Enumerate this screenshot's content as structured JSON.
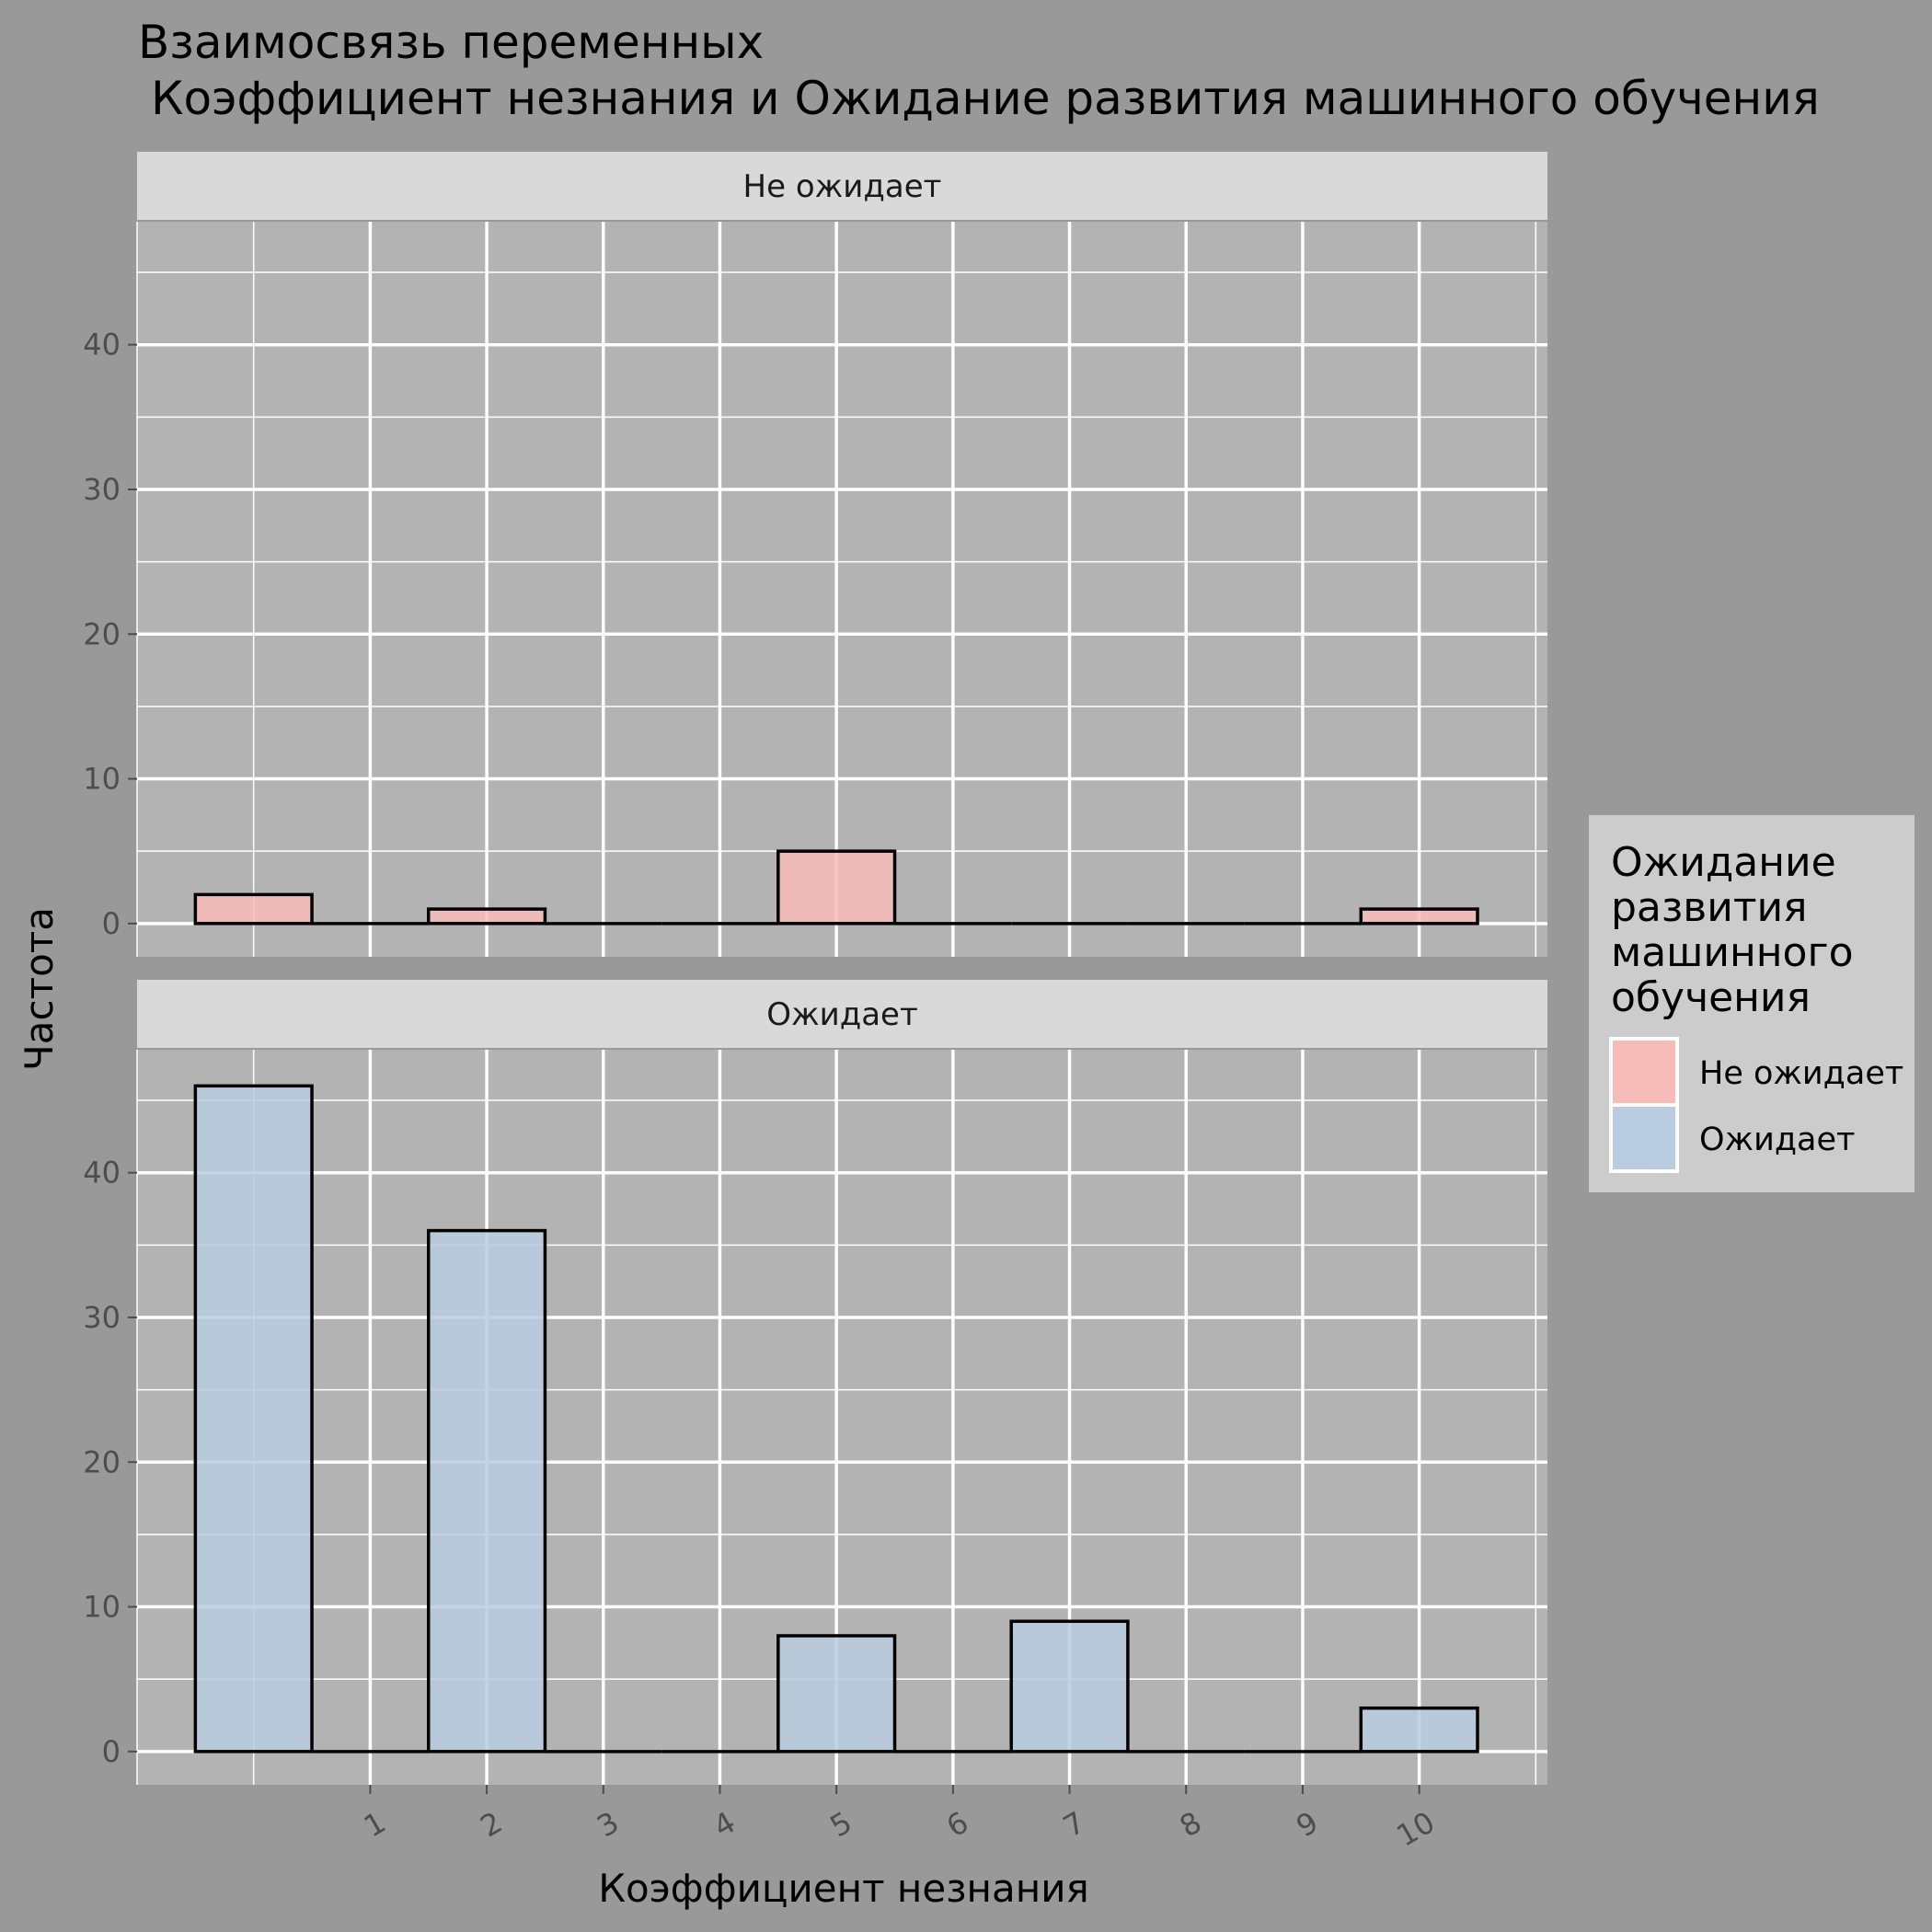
{
  "chart_data": {
    "type": "bar",
    "title_lines": [
      "Взаимосвязь переменных",
      "Коэффициент незнания и Ожидание развития машинного обучения"
    ],
    "xlabel": "Коэффициент незнания",
    "ylabel": "Частота",
    "x_ticks": [
      1,
      2,
      3,
      4,
      5,
      6,
      7,
      8,
      9,
      10
    ],
    "y_ticks": [
      0,
      10,
      20,
      30,
      40
    ],
    "xlim": [
      -1,
      11.1
    ],
    "ylim": [
      -2.3,
      48.5
    ],
    "bin_width": 1,
    "bin_centers": [
      0,
      1,
      2,
      3,
      4,
      5,
      6,
      7,
      8,
      9,
      10
    ],
    "grid": true,
    "legend": {
      "title_lines": [
        "Ожидание",
        "развития",
        "машинного",
        "обучения"
      ],
      "position": "right",
      "entries": [
        {
          "label": "Не ожидает",
          "color": "#F8BCB8"
        },
        {
          "label": "Ожидает",
          "color": "#B9CCE0"
        }
      ]
    },
    "panels": [
      {
        "strip": "Не ожидает",
        "fill": "#F8BCB8",
        "values": [
          2,
          0,
          1,
          0,
          0,
          5,
          0,
          0,
          0,
          0,
          1
        ]
      },
      {
        "strip": "Ожидает",
        "fill": "#B9CCE0",
        "values": [
          46,
          0,
          36,
          0,
          0,
          8,
          0,
          9,
          0,
          0,
          3
        ]
      }
    ]
  }
}
